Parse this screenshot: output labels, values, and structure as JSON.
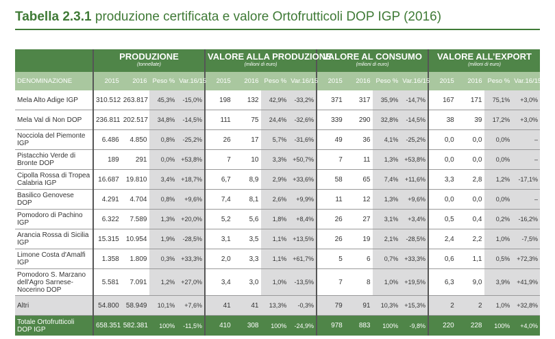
{
  "title": {
    "bold": "Tabella 2.3.1",
    "rest": " produzione certificata e valore Ortofrutticoli DOP IGP (2016)"
  },
  "groups": [
    {
      "label": "PRODUZIONE",
      "unit": "(tonnellate)"
    },
    {
      "label": "VALORE ALLA PRODUZIONE",
      "unit": "(milioni di euro)"
    },
    {
      "label": "VALORE AL CONSUMO",
      "unit": "(milioni di euro)"
    },
    {
      "label": "VALORE ALL’EXPORT",
      "unit": "(milioni di euro)"
    }
  ],
  "name_header": "DENOMINAZIONE",
  "subheaders": [
    "2015",
    "2016",
    "Peso %",
    "Var.16/15"
  ],
  "rows": [
    {
      "name": "Mela Alto Adige IGP",
      "v": [
        "310.512",
        "263.817",
        "45,3%",
        "-15,0%",
        "198",
        "132",
        "42,9%",
        "-33,2%",
        "371",
        "317",
        "35,9%",
        "-14,7%",
        "167",
        "171",
        "75,1%",
        "+3,0%"
      ]
    },
    {
      "name": "Mela Val di Non DOP",
      "v": [
        "236.811",
        "202.517",
        "34,8%",
        "-14,5%",
        "111",
        "75",
        "24,4%",
        "-32,6%",
        "339",
        "290",
        "32,8%",
        "-14,5%",
        "38",
        "39",
        "17,2%",
        "+3,0%"
      ]
    },
    {
      "name": "Nocciola del Piemonte IGP",
      "v": [
        "6.486",
        "4.850",
        "0,8%",
        "-25,2%",
        "26",
        "17",
        "5,7%",
        "-31,6%",
        "49",
        "36",
        "4,1%",
        "-25,2%",
        "0,0",
        "0,0",
        "0,0%",
        "–"
      ]
    },
    {
      "name": "Pistacchio Verde di Bronte DOP",
      "v": [
        "189",
        "291",
        "0,0%",
        "+53,8%",
        "7",
        "10",
        "3,3%",
        "+50,7%",
        "7",
        "11",
        "1,3%",
        "+53,8%",
        "0,0",
        "0,0",
        "0,0%",
        "–"
      ]
    },
    {
      "name": "Cipolla Rossa di Tropea Calabria IGP",
      "v": [
        "16.687",
        "19.810",
        "3,4%",
        "+18,7%",
        "6,7",
        "8,9",
        "2,9%",
        "+33,6%",
        "58",
        "65",
        "7,4%",
        "+11,6%",
        "3,3",
        "2,8",
        "1,2%",
        "-17,1%"
      ]
    },
    {
      "name": "Basilico Genovese DOP",
      "v": [
        "4.291",
        "4.704",
        "0,8%",
        "+9,6%",
        "7,4",
        "8,1",
        "2,6%",
        "+9,9%",
        "11",
        "12",
        "1,3%",
        "+9,6%",
        "0,0",
        "0,0",
        "0,0%",
        "–"
      ]
    },
    {
      "name": "Pomodoro di Pachino IGP",
      "v": [
        "6.322",
        "7.589",
        "1,3%",
        "+20,0%",
        "5,2",
        "5,6",
        "1,8%",
        "+8,4%",
        "26",
        "27",
        "3,1%",
        "+3,4%",
        "0,5",
        "0,4",
        "0,2%",
        "-16,2%"
      ]
    },
    {
      "name": "Arancia Rossa di Sicilia IGP",
      "v": [
        "15.315",
        "10.954",
        "1,9%",
        "-28,5%",
        "3,1",
        "3,5",
        "1,1%",
        "+13,5%",
        "26",
        "19",
        "2,1%",
        "-28,5%",
        "2,4",
        "2,2",
        "1,0%",
        "-7,5%"
      ]
    },
    {
      "name": "Limone Costa d'Amalfi IGP",
      "v": [
        "1.358",
        "1.809",
        "0,3%",
        "+33,3%",
        "2,0",
        "3,3",
        "1,1%",
        "+61,7%",
        "5",
        "6",
        "0,7%",
        "+33,3%",
        "0,6",
        "1,1",
        "0,5%",
        "+72,3%"
      ]
    },
    {
      "name": "Pomodoro S. Marzano dell'Agro Sarnese-Nocerino DOP",
      "v": [
        "5.581",
        "7.091",
        "1,2%",
        "+27,0%",
        "3,4",
        "3,0",
        "1,0%",
        "-13,5%",
        "7",
        "8",
        "1,0%",
        "+19,5%",
        "6,3",
        "9,0",
        "3,9%",
        "+41,9%"
      ]
    },
    {
      "name": "Altri",
      "v": [
        "54.800",
        "58.949",
        "10,1%",
        "+7,6%",
        "41",
        "41",
        "13,3%",
        "-0,3%",
        "79",
        "91",
        "10,3%",
        "+15,3%",
        "2",
        "2",
        "1,0%",
        "+32,8%"
      ]
    }
  ],
  "total": {
    "name": "Totale Ortofrutticoli DOP IGP",
    "v": [
      "658.351",
      "582.381",
      "100%",
      "-11,5%",
      "410",
      "308",
      "100%",
      "-24,9%",
      "978",
      "883",
      "100%",
      "-9,8%",
      "220",
      "228",
      "100%",
      "+4,0%"
    ]
  }
}
